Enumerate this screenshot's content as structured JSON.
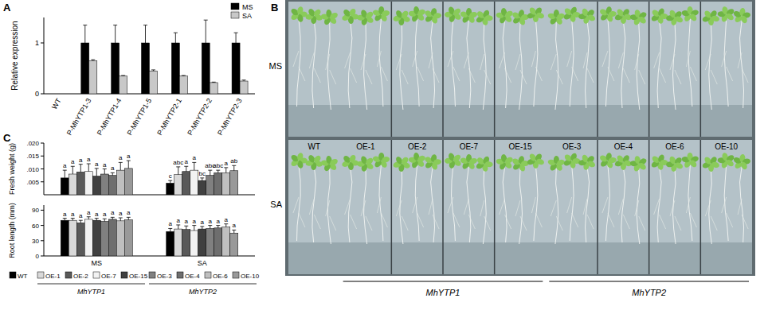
{
  "panels": [
    "A",
    "B",
    "C"
  ],
  "chart_data": [
    {
      "type": "bar",
      "y_label": "Relative expression",
      "legend": "top-right",
      "categories": [
        "WT",
        "P-MhYTP1-3",
        "P-MhYTP1-4",
        "P-MhYTP1-5",
        "P-MhYTP2-1",
        "P-MhYTP2-2",
        "P-MhYTP2-3"
      ],
      "ylim": [
        0,
        1.5
      ],
      "yticks": [
        0,
        1
      ],
      "series": [
        {
          "name": "MS",
          "color": "#000000",
          "values": [
            0,
            1,
            1,
            1,
            1,
            1,
            1
          ],
          "errors": [
            0,
            0.35,
            0.35,
            0.35,
            0.2,
            0.45,
            0.2
          ]
        },
        {
          "name": "SA",
          "color": "#c8c8c8",
          "values": [
            0,
            0.65,
            0.35,
            0.45,
            0.35,
            0.22,
            0.25
          ],
          "errors": [
            0,
            0.02,
            0.01,
            0.02,
            0.01,
            0.01,
            0.02
          ]
        }
      ]
    },
    {
      "type": "bar",
      "y_label": "Fresh weight (g)",
      "tick_labels": "y",
      "categories": [
        "MS",
        "SA"
      ],
      "ylim": [
        0,
        0.02
      ],
      "yticks": [
        {
          "value": 0.005,
          "label": ".005"
        },
        {
          "value": 0.01,
          "label": ".010"
        },
        {
          "value": 0.015,
          "label": ".015"
        },
        {
          "value": 0.02,
          "label": ".020"
        }
      ],
      "series": [
        {
          "name": "WT",
          "color": "#000000",
          "values": [
            0.0065,
            0.0045
          ],
          "errors": [
            0.003,
            0.001
          ],
          "letters": [
            "a",
            "c"
          ]
        },
        {
          "name": "OE-1",
          "color": "#d9d9d9",
          "values": [
            0.008,
            0.0078
          ],
          "errors": [
            0.003,
            0.003
          ],
          "letters": [
            "a",
            "abc"
          ]
        },
        {
          "name": "OE-2",
          "color": "#595959",
          "values": [
            0.0088,
            0.009
          ],
          "errors": [
            0.003,
            0.002
          ],
          "letters": [
            "a",
            "a"
          ]
        },
        {
          "name": "OE-7",
          "color": "#f2f2f2",
          "values": [
            0.009,
            0.0095
          ],
          "errors": [
            0.003,
            0.003
          ],
          "letters": [
            "a",
            "a"
          ]
        },
        {
          "name": "OE-15",
          "color": "#404040",
          "values": [
            0.0072,
            0.0055
          ],
          "errors": [
            0.003,
            0.001
          ],
          "letters": [
            "a",
            "bc"
          ]
        },
        {
          "name": "OE-3",
          "color": "#808080",
          "values": [
            0.008,
            0.0075
          ],
          "errors": [
            0.002,
            0.002
          ],
          "letters": [
            "a",
            "abc"
          ]
        },
        {
          "name": "OE-4",
          "color": "#6e6e6e",
          "values": [
            0.0075,
            0.0085
          ],
          "errors": [
            0.001,
            0.001
          ],
          "letters": [
            "a",
            "abc"
          ]
        },
        {
          "name": "OE-6",
          "color": "#bfbfbf",
          "values": [
            0.0095,
            0.0085
          ],
          "errors": [
            0.003,
            0.002
          ],
          "letters": [
            "a",
            "a"
          ]
        },
        {
          "name": "OE-10",
          "color": "#999999",
          "values": [
            0.0102,
            0.0093
          ],
          "errors": [
            0.003,
            0.002
          ],
          "letters": [
            "a",
            "ab"
          ]
        }
      ]
    },
    {
      "type": "bar",
      "y_label": "Root length (mm)",
      "legend": "bottom",
      "categories": [
        "MS",
        "SA"
      ],
      "ylim": [
        0,
        100
      ],
      "yticks": [
        0,
        30,
        60,
        90
      ],
      "legend_groups": [
        {
          "label": "MhYTP1",
          "members": [
            "OE-1",
            "OE-2",
            "OE-7",
            "OE-15"
          ]
        },
        {
          "label": "MhYTP2",
          "members": [
            "OE-3",
            "OE-4",
            "OE-6",
            "OE-10"
          ]
        }
      ],
      "series": [
        {
          "name": "WT",
          "color": "#000000",
          "values": [
            70,
            48
          ],
          "errors": [
            4,
            6
          ],
          "letters": [
            "a",
            "a"
          ]
        },
        {
          "name": "OE-1",
          "color": "#d9d9d9",
          "values": [
            70,
            53
          ],
          "errors": [
            4,
            8
          ],
          "letters": [
            "a",
            "a"
          ]
        },
        {
          "name": "OE-2",
          "color": "#595959",
          "values": [
            65,
            52
          ],
          "errors": [
            5,
            7
          ],
          "letters": [
            "a",
            "a"
          ]
        },
        {
          "name": "OE-7",
          "color": "#f2f2f2",
          "values": [
            72,
            50
          ],
          "errors": [
            5,
            10
          ],
          "letters": [
            "a",
            "a"
          ]
        },
        {
          "name": "OE-15",
          "color": "#404040",
          "values": [
            70,
            53
          ],
          "errors": [
            4,
            5
          ],
          "letters": [
            "a",
            "a"
          ]
        },
        {
          "name": "OE-3",
          "color": "#808080",
          "values": [
            68,
            54
          ],
          "errors": [
            5,
            6
          ],
          "letters": [
            "a",
            "a"
          ]
        },
        {
          "name": "OE-4",
          "color": "#6e6e6e",
          "values": [
            72,
            55
          ],
          "errors": [
            4,
            5
          ],
          "letters": [
            "a",
            "a"
          ]
        },
        {
          "name": "OE-6",
          "color": "#bfbfbf",
          "values": [
            69,
            57
          ],
          "errors": [
            6,
            6
          ],
          "letters": [
            "a",
            "a"
          ]
        },
        {
          "name": "OE-10",
          "color": "#999999",
          "values": [
            71,
            45
          ],
          "errors": [
            5,
            6
          ],
          "letters": [
            "a",
            "a"
          ]
        }
      ]
    }
  ],
  "photo": {
    "rows": [
      "MS",
      "SA"
    ],
    "lines": [
      "WT",
      "OE-1",
      "OE-2",
      "OE-7",
      "OE-15",
      "OE-3",
      "OE-4",
      "OE-6",
      "OE-10"
    ],
    "groups": [
      {
        "label": "MhYTP1",
        "lines": [
          "OE-1",
          "OE-2",
          "OE-7",
          "OE-15"
        ]
      },
      {
        "label": "MhYTP2",
        "lines": [
          "OE-3",
          "OE-4",
          "OE-6",
          "OE-10"
        ]
      }
    ]
  }
}
